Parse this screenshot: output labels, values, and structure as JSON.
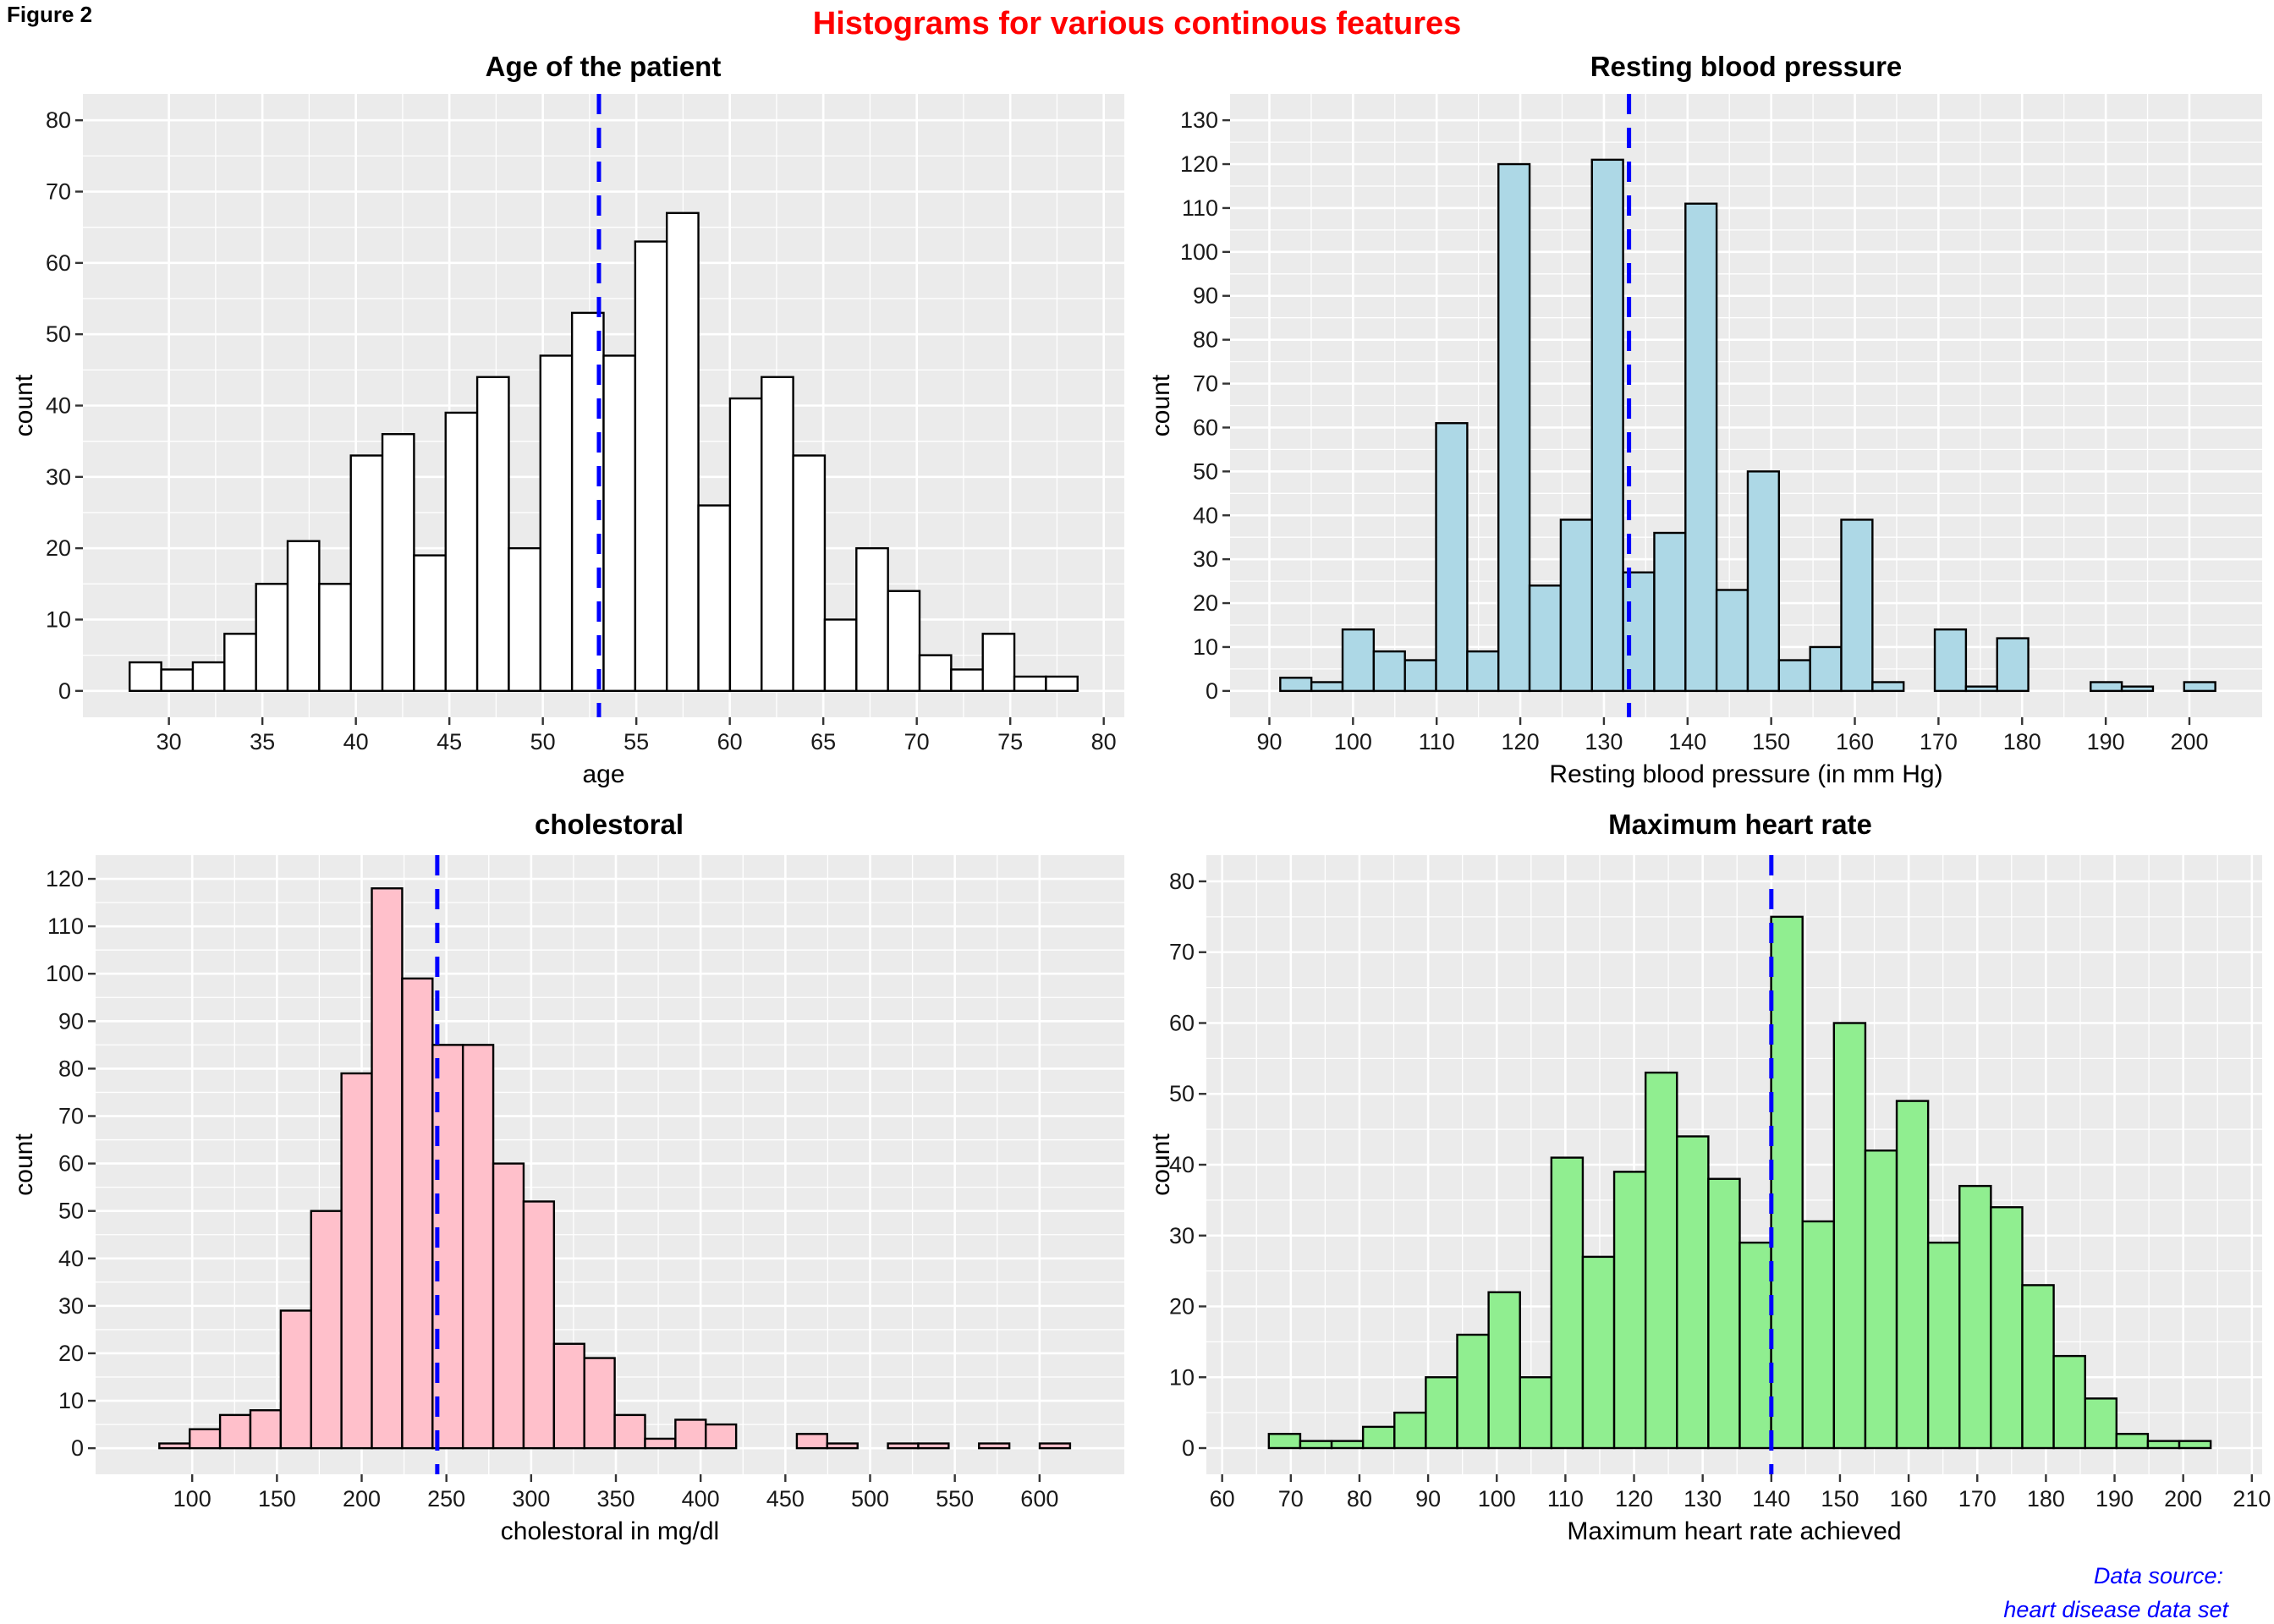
{
  "figure_label": "Figure 2",
  "title": "Histograms for various continous features",
  "caption": [
    "Data source:",
    "heart disease data set"
  ],
  "colors": {
    "title": "#ff0000",
    "mean_line": "#0000ff",
    "caption": "#0000ff",
    "panel_background": "#ebebeb"
  },
  "chart_data": [
    {
      "type": "bar",
      "subtype": "histogram",
      "title": "Age of the patient",
      "xlabel": "age",
      "ylabel": "count",
      "fill": "#ffffff",
      "bins": 30,
      "bin_start": 27.9,
      "bin_end": 78.6,
      "values": [
        4,
        3,
        4,
        8,
        15,
        21,
        15,
        33,
        36,
        19,
        39,
        44,
        20,
        47,
        53,
        47,
        63,
        67,
        26,
        41,
        44,
        33,
        10,
        20,
        14,
        5,
        3,
        8,
        2,
        2
      ],
      "mean_line": 53.0,
      "xlim": [
        25.4,
        81.1
      ],
      "ylim": [
        -3.7,
        83.7
      ],
      "xticks": [
        30,
        35,
        40,
        45,
        50,
        55,
        60,
        65,
        70,
        75,
        80
      ],
      "yticks": [
        0,
        10,
        20,
        30,
        40,
        50,
        60,
        70,
        80
      ],
      "grid": true
    },
    {
      "type": "bar",
      "subtype": "histogram",
      "title": "Resting blood pressure",
      "xlabel": "Resting blood pressure (in mm Hg)",
      "ylabel": "count",
      "fill": "#add8e6",
      "bins": 30,
      "bin_start": 91.3,
      "bin_end": 203.1,
      "values": [
        3,
        2,
        14,
        9,
        7,
        61,
        9,
        120,
        24,
        39,
        121,
        27,
        36,
        111,
        23,
        50,
        7,
        10,
        39,
        2,
        0,
        14,
        1,
        12,
        0,
        0,
        2,
        1,
        0,
        2
      ],
      "mean_line": 133.0,
      "xlim": [
        85.3,
        208.7
      ],
      "ylim": [
        -6,
        136
      ],
      "xticks": [
        90,
        100,
        110,
        120,
        130,
        140,
        150,
        160,
        170,
        180,
        190,
        200
      ],
      "yticks": [
        0,
        10,
        20,
        30,
        40,
        50,
        60,
        70,
        80,
        90,
        100,
        110,
        120,
        130
      ],
      "grid": true
    },
    {
      "type": "bar",
      "subtype": "histogram",
      "title": "cholestoral",
      "xlabel": "cholestoral in mg/dl",
      "ylabel": "count",
      "fill": "#ffc0cb",
      "bins": 30,
      "bin_start": 80.6,
      "bin_end": 618.0,
      "values": [
        1,
        4,
        7,
        8,
        29,
        50,
        79,
        118,
        99,
        85,
        85,
        60,
        52,
        22,
        19,
        7,
        2,
        6,
        5,
        0,
        0,
        3,
        1,
        0,
        1,
        1,
        0,
        1,
        0,
        1
      ],
      "mean_line": 244.6,
      "xlim": [
        43,
        650
      ],
      "ylim": [
        -5.5,
        125
      ],
      "xticks": [
        100,
        150,
        200,
        250,
        300,
        350,
        400,
        450,
        500,
        550,
        600
      ],
      "yticks": [
        0,
        10,
        20,
        30,
        40,
        50,
        60,
        70,
        80,
        90,
        100,
        110,
        120
      ],
      "grid": true
    },
    {
      "type": "bar",
      "subtype": "histogram",
      "title": "Maximum heart rate",
      "xlabel": "Maximum heart rate achieved",
      "ylabel": "count",
      "fill": "#90ee90",
      "bins": 30,
      "bin_start": 66.8,
      "bin_end": 204.0,
      "values": [
        2,
        1,
        1,
        3,
        5,
        10,
        16,
        22,
        10,
        41,
        27,
        39,
        53,
        44,
        38,
        29,
        75,
        32,
        60,
        42,
        49,
        29,
        37,
        34,
        23,
        13,
        7,
        2,
        1,
        1
      ],
      "mean_line": 140.0,
      "xlim": [
        57.7,
        211.5
      ],
      "ylim": [
        -3.7,
        83.7
      ],
      "xticks": [
        60,
        70,
        80,
        90,
        100,
        110,
        120,
        130,
        140,
        150,
        160,
        170,
        180,
        190,
        200,
        210
      ],
      "yticks": [
        0,
        10,
        20,
        30,
        40,
        50,
        60,
        70,
        80
      ],
      "grid": true
    }
  ]
}
